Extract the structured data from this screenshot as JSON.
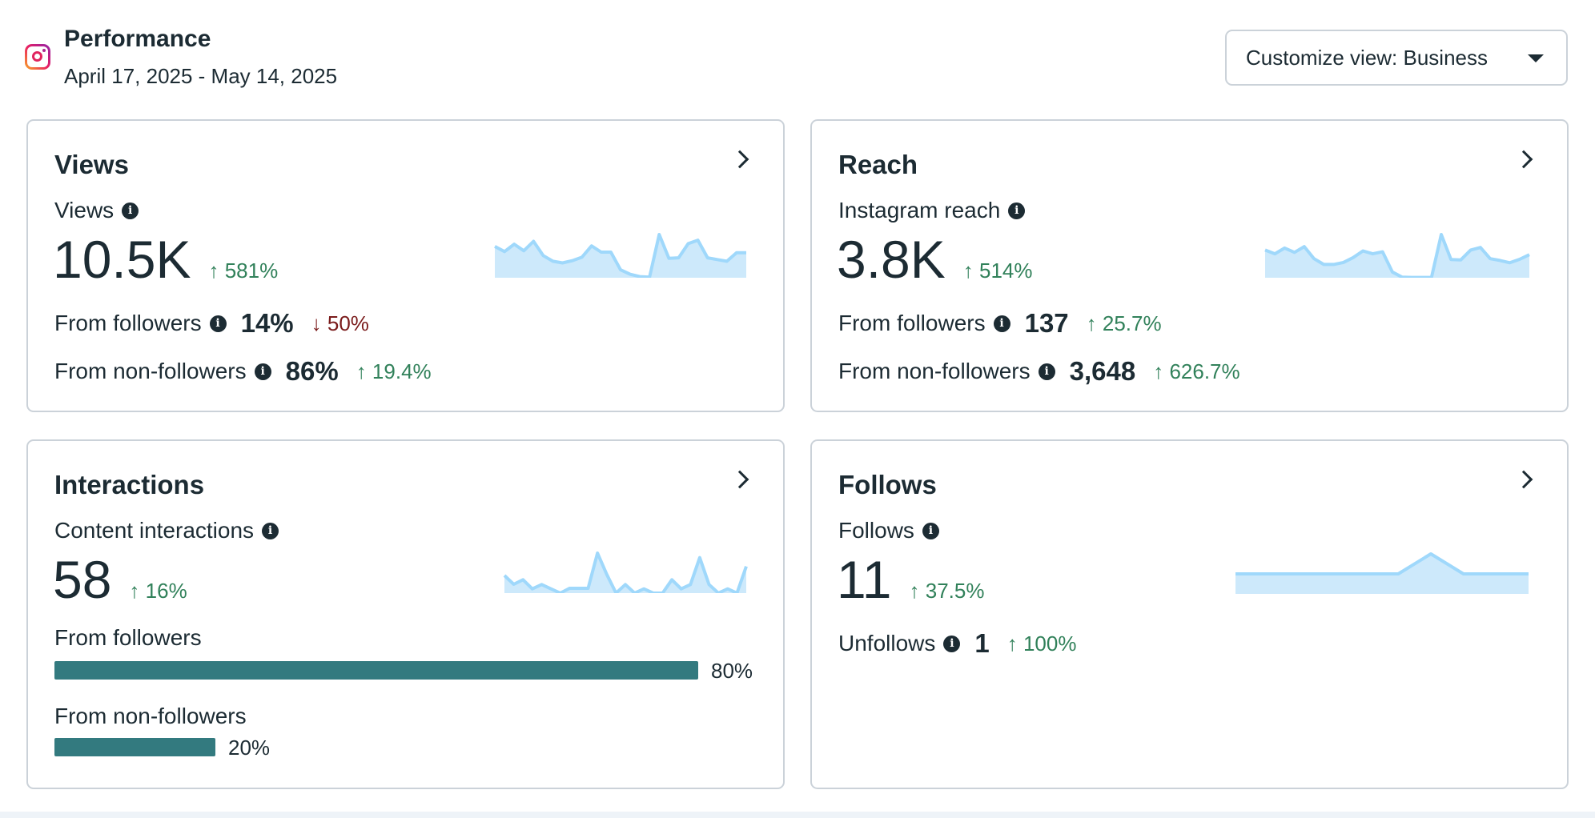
{
  "header": {
    "title": "Performance",
    "date_range": "April 17, 2025 - May 14, 2025",
    "icon": "instagram-icon",
    "customize_label": "Customize view: Business"
  },
  "colors": {
    "text": "#1c2b33",
    "positive": "#31815a",
    "negative": "#7a1b1b",
    "bar": "#337a7f",
    "spark_line": "#9fd8fb",
    "spark_fill": "#cde9fb"
  },
  "views": {
    "title": "Views",
    "metric_label": "Views",
    "value": "10.5K",
    "change": "↑ 581%",
    "rows": [
      {
        "label": "From followers",
        "value": "14%",
        "change": "↓ 50%",
        "direction": "down"
      },
      {
        "label": "From non-followers",
        "value": "86%",
        "change": "↑ 19.4%",
        "direction": "up"
      }
    ]
  },
  "reach": {
    "title": "Reach",
    "metric_label": "Instagram reach",
    "value": "3.8K",
    "change": "↑ 514%",
    "rows": [
      {
        "label": "From followers",
        "value": "137",
        "change": "↑ 25.7%",
        "direction": "up"
      },
      {
        "label": "From non-followers",
        "value": "3,648",
        "change": "↑ 626.7%",
        "direction": "up"
      }
    ]
  },
  "interactions": {
    "title": "Interactions",
    "metric_label": "Content interactions",
    "value": "58",
    "change": "↑ 16%",
    "bars": [
      {
        "label": "From followers",
        "percent": 80,
        "percent_label": "80%"
      },
      {
        "label": "From non-followers",
        "percent": 20,
        "percent_label": "20%"
      }
    ]
  },
  "follows": {
    "title": "Follows",
    "metric_label": "Follows",
    "value": "11",
    "change": "↑ 37.5%",
    "rows": [
      {
        "label": "Unfollows",
        "value": "1",
        "change": "↑ 100%",
        "direction": "up"
      }
    ]
  },
  "chart_data": [
    {
      "type": "area",
      "name": "views-sparkline",
      "values": [
        110,
        92,
        118,
        95,
        128,
        78,
        58,
        52,
        60,
        72,
        112,
        90,
        90,
        28,
        12,
        4,
        2,
        152,
        68,
        70,
        120,
        132,
        70,
        64,
        58,
        88,
        88
      ]
    },
    {
      "type": "area",
      "name": "reach-sparkline",
      "values": [
        96,
        83,
        103,
        88,
        108,
        66,
        46,
        46,
        53,
        70,
        93,
        83,
        90,
        20,
        2,
        1,
        1,
        1,
        150,
        63,
        62,
        96,
        105,
        66,
        60,
        52,
        64,
        80
      ]
    },
    {
      "type": "area",
      "name": "interactions-sparkline",
      "values": [
        66,
        33,
        50,
        16,
        32,
        16,
        0,
        18,
        18,
        18,
        150,
        70,
        0,
        32,
        0,
        16,
        0,
        0,
        50,
        16,
        32,
        133,
        32,
        0,
        16,
        0,
        100
      ]
    },
    {
      "type": "area",
      "name": "follows-sparkline",
      "values": [
        1,
        1,
        1,
        1,
        1,
        1,
        2,
        1,
        1,
        1
      ],
      "ylim": [
        0,
        2
      ]
    }
  ]
}
